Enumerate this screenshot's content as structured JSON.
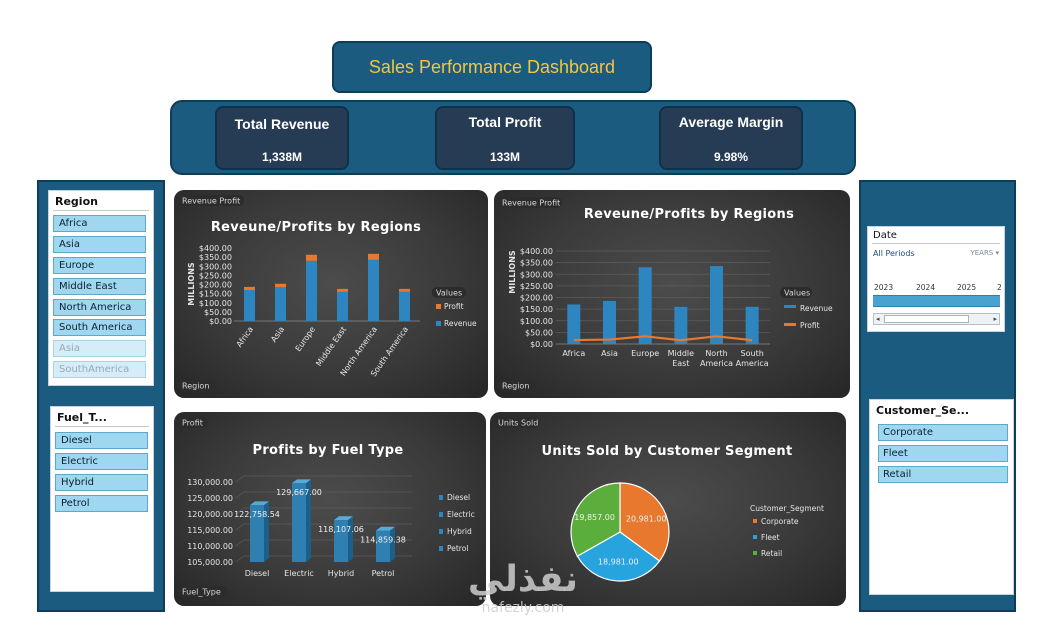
{
  "dashboard": {
    "title": "Sales Performance Dashboard"
  },
  "kpis": [
    {
      "label": "Total Revenue",
      "value": "1,338M"
    },
    {
      "label": "Total Profit",
      "value": "133M"
    },
    {
      "label": "Average Margin",
      "value": "9.98%"
    }
  ],
  "region_slicer": {
    "title": "Region",
    "items": [
      {
        "label": "Africa",
        "dimmed": false
      },
      {
        "label": "Asia",
        "dimmed": false
      },
      {
        "label": "Europe",
        "dimmed": false
      },
      {
        "label": "Middle East",
        "dimmed": false
      },
      {
        "label": "North America",
        "dimmed": false
      },
      {
        "label": "South America",
        "dimmed": false
      },
      {
        "label": "Asia ",
        "dimmed": true
      },
      {
        "label": "SouthAmerica",
        "dimmed": true
      }
    ]
  },
  "fuel_slicer": {
    "title": "Fuel_T...",
    "items": [
      "Diesel",
      "Electric",
      "Hybrid",
      "Petrol"
    ]
  },
  "date_slicer": {
    "title": "Date",
    "period": "All Periods",
    "granularity": "YEARS",
    "years": [
      "2023",
      "2024",
      "2025",
      "2"
    ]
  },
  "customer_slicer": {
    "title": "Customer_Se...",
    "items": [
      "Corporate",
      "Fleet",
      "Retail"
    ]
  },
  "colors": {
    "revenue": "#2e86c1",
    "profit": "#e8782e",
    "diesel": "#2e86c1",
    "corporate": "#e8782e",
    "fleet": "#27a3dd",
    "retail": "#5cae3c"
  },
  "watermark": {
    "arabic": "نفذلي",
    "latin": "nafezly.com"
  },
  "chart_data": [
    {
      "type": "bar",
      "stacked": true,
      "title": "Reveune/Profits by Regions",
      "field_buttons": [
        "Revenue Profit",
        "Region"
      ],
      "ylabel": "MILLIONS",
      "ylim": [
        0,
        400
      ],
      "yticks": [
        "$0.00",
        "$50.00",
        "$100.00",
        "$150.00",
        "$200.00",
        "$250.00",
        "$300.00",
        "$350.00",
        "$400.00"
      ],
      "categories": [
        "Africa",
        "Asia",
        "Europe",
        "Middle East",
        "North America",
        "South America"
      ],
      "series": [
        {
          "name": "Revenue",
          "values": [
            170,
            185,
            330,
            160,
            335,
            160
          ]
        },
        {
          "name": "Profit",
          "values": [
            17,
            19,
            33,
            16,
            33,
            16
          ]
        }
      ],
      "legend_title": "Values",
      "legend": [
        "Profit",
        "Revenue"
      ]
    },
    {
      "type": "bar",
      "title": "Reveune/Profits by Regions",
      "field_buttons": [
        "Revenue Profit",
        "Region"
      ],
      "ylabel": "MILLIONS",
      "ylim": [
        0,
        400
      ],
      "yticks": [
        "$0.00",
        "$50.00",
        "$100.00",
        "$150.00",
        "$200.00",
        "$250.00",
        "$300.00",
        "$350.00",
        "$400.00"
      ],
      "categories": [
        "Africa",
        "Asia",
        "Europe",
        "Middle East",
        "North America",
        "South America"
      ],
      "category_lines": [
        [
          "Africa"
        ],
        [
          "Asia"
        ],
        [
          "Europe"
        ],
        [
          "Middle",
          "East"
        ],
        [
          "North",
          "America"
        ],
        [
          "South",
          "America"
        ]
      ],
      "series": [
        {
          "name": "Revenue",
          "type": "bar",
          "values": [
            170,
            185,
            330,
            160,
            335,
            160
          ]
        },
        {
          "name": "Profit",
          "type": "line",
          "values": [
            17,
            19,
            33,
            16,
            33,
            16
          ]
        }
      ],
      "legend_title": "Values",
      "legend": [
        "Revenue",
        "Profit"
      ]
    },
    {
      "type": "bar",
      "title": "Profits by Fuel Type",
      "field_buttons": [
        "Profit",
        "Fuel_Type"
      ],
      "ylim": [
        105000,
        130000
      ],
      "yticks": [
        "105,000.00",
        "110,000.00",
        "115,000.00",
        "120,000.00",
        "125,000.00",
        "130,000.00"
      ],
      "categories": [
        "Diesel",
        "Electric",
        "Hybrid",
        "Petrol"
      ],
      "values": [
        122758.54,
        129667.0,
        118107.06,
        114859.38
      ],
      "data_labels": [
        "122,758.54",
        "129,667.00",
        "118,107.06",
        "114,859.38"
      ],
      "legend": [
        "Diesel",
        "Electric",
        "Hybrid",
        "Petrol"
      ]
    },
    {
      "type": "pie",
      "title": "Units Sold by Customer Segment",
      "field_buttons": [
        "Units Sold"
      ],
      "categories": [
        "Corporate",
        "Fleet",
        "Retail"
      ],
      "values": [
        20981,
        18981,
        19857
      ],
      "data_labels": [
        "20,981.00",
        "18,981.00",
        "19,857.00"
      ],
      "legend_title": "Customer_Segment",
      "legend": [
        "Corporate",
        "Fleet",
        "Retail"
      ]
    }
  ]
}
